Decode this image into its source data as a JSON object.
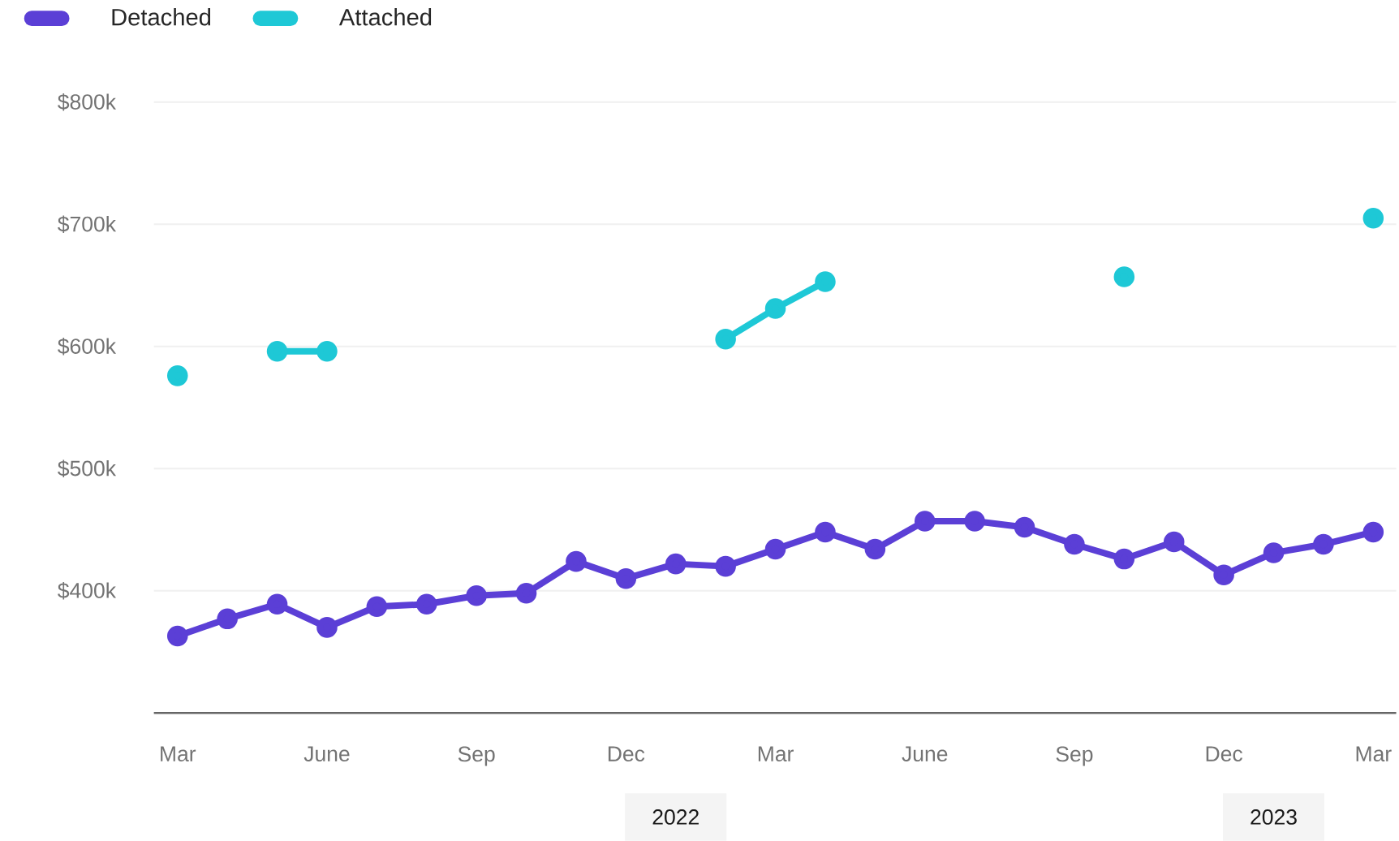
{
  "chart_data": {
    "type": "line",
    "x": [
      "2021-03",
      "2021-04",
      "2021-05",
      "2021-06",
      "2021-07",
      "2021-08",
      "2021-09",
      "2021-10",
      "2021-11",
      "2021-12",
      "2022-01",
      "2022-02",
      "2022-03",
      "2022-04",
      "2022-05",
      "2022-06",
      "2022-07",
      "2022-08",
      "2022-09",
      "2022-10",
      "2022-11",
      "2022-12",
      "2023-01",
      "2023-02",
      "2023-03"
    ],
    "series": [
      {
        "name": "Detached",
        "color": "#5b3fd6",
        "values": [
          363000,
          377000,
          389000,
          370000,
          387000,
          389000,
          396000,
          398000,
          424000,
          410000,
          422000,
          420000,
          434000,
          448000,
          434000,
          457000,
          457000,
          452000,
          438000,
          426000,
          440000,
          413000,
          431000,
          438000,
          448000
        ]
      },
      {
        "name": "Attached",
        "color": "#1ec8d6",
        "values": [
          576000,
          null,
          596000,
          596000,
          null,
          null,
          null,
          null,
          null,
          null,
          null,
          606000,
          631000,
          653000,
          null,
          null,
          null,
          null,
          null,
          657000,
          null,
          null,
          null,
          null,
          705000
        ]
      }
    ],
    "xlim": [
      "2021-02-17",
      "2023-03-15"
    ],
    "xticks": [
      {
        "value": "2021-03",
        "label": "Mar"
      },
      {
        "value": "2021-06",
        "label": "June"
      },
      {
        "value": "2021-09",
        "label": "Sep"
      },
      {
        "value": "2021-12",
        "label": "Dec"
      },
      {
        "value": "2022-03",
        "label": "Mar"
      },
      {
        "value": "2022-06",
        "label": "June"
      },
      {
        "value": "2022-09",
        "label": "Sep"
      },
      {
        "value": "2022-12",
        "label": "Dec"
      },
      {
        "value": "2023-03",
        "label": "Mar"
      }
    ],
    "ylim": [
      300000,
      800000
    ],
    "yticks": [
      {
        "value": 400000,
        "label": "$400k"
      },
      {
        "value": 500000,
        "label": "$500k"
      },
      {
        "value": 600000,
        "label": "$600k"
      },
      {
        "value": 700000,
        "label": "$700k"
      },
      {
        "value": 800000,
        "label": "$800k"
      }
    ],
    "annotations": [
      "2022",
      "2023"
    ],
    "grid": "y",
    "legend": "top left",
    "marker": "circle",
    "line_style": "solid"
  }
}
